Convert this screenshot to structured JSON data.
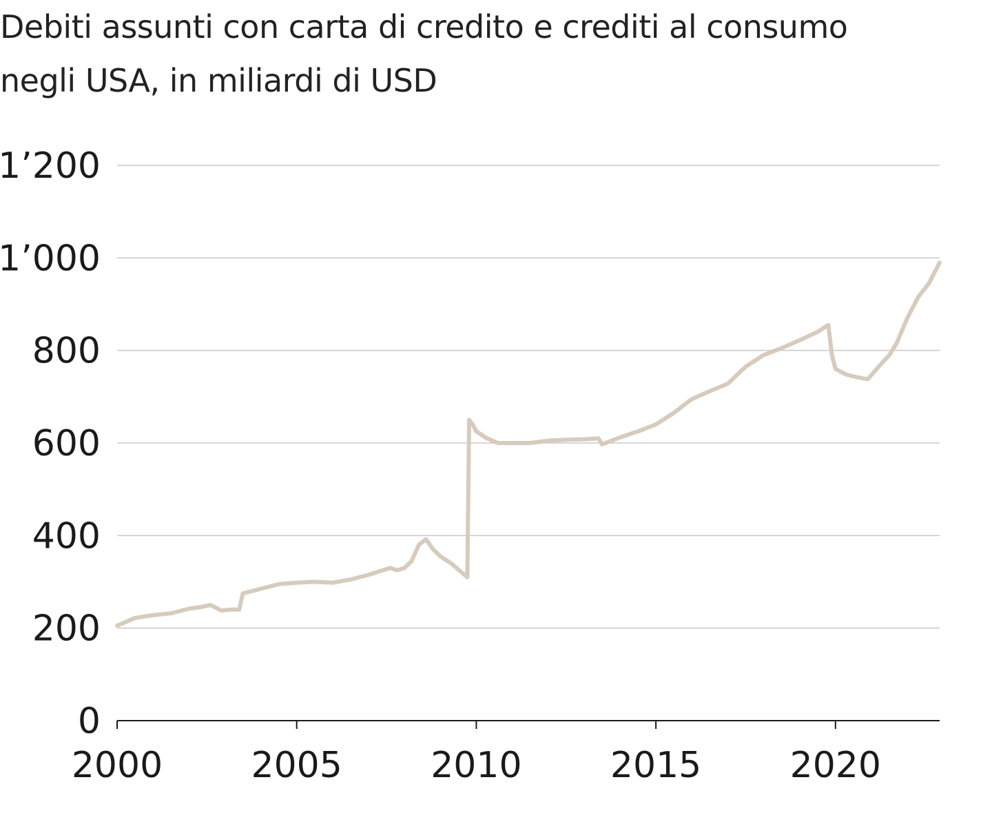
{
  "chart_data": {
    "type": "line",
    "title": "Debiti assunti con carta di credito e crediti al consumo negli USA, in miliardi di USD",
    "title_lines": [
      "Debiti assunti con carta di credito e crediti al consumo",
      "negli USA, in miliardi di USD"
    ],
    "xlabel": "",
    "ylabel": "",
    "xlim": [
      2000,
      2022.9
    ],
    "ylim": [
      0,
      1200
    ],
    "x_ticks": [
      2000,
      2005,
      2010,
      2015,
      2020
    ],
    "x_tick_labels": [
      "2000",
      "2005",
      "2010",
      "2015",
      "2020"
    ],
    "y_ticks": [
      0,
      200,
      400,
      600,
      800,
      1000,
      1200
    ],
    "y_tick_labels": [
      "0",
      "200",
      "400",
      "600",
      "800",
      "1’000",
      "1’200"
    ],
    "grid": true,
    "line_color": "#d6cbbd",
    "series": [
      {
        "x": [
          2000.0,
          2000.5,
          2001.0,
          2001.5,
          2002.0,
          2002.3,
          2002.6,
          2002.9,
          2003.2,
          2003.4,
          2003.5,
          2004.0,
          2004.5,
          2005.0,
          2005.5,
          2006.0,
          2006.5,
          2007.0,
          2007.4,
          2007.6,
          2007.8,
          2008.0,
          2008.2,
          2008.4,
          2008.6,
          2008.8,
          2009.0,
          2009.3,
          2009.6,
          2009.75,
          2009.8,
          2009.9,
          2010.0,
          2010.3,
          2010.6,
          2011.0,
          2011.5,
          2012.0,
          2012.5,
          2013.0,
          2013.4,
          2013.5,
          2014.0,
          2014.5,
          2015.0,
          2015.5,
          2016.0,
          2016.5,
          2017.0,
          2017.5,
          2018.0,
          2018.5,
          2019.0,
          2019.5,
          2019.8,
          2019.9,
          2020.0,
          2020.3,
          2020.6,
          2020.9,
          2021.2,
          2021.5,
          2021.7,
          2022.0,
          2022.3,
          2022.6,
          2022.9
        ],
        "y": [
          205,
          222,
          228,
          232,
          242,
          245,
          250,
          238,
          240,
          240,
          275,
          285,
          295,
          298,
          300,
          298,
          305,
          315,
          325,
          330,
          325,
          330,
          345,
          380,
          392,
          370,
          355,
          340,
          320,
          310,
          650,
          640,
          625,
          610,
          600,
          600,
          600,
          605,
          607,
          608,
          610,
          597,
          612,
          625,
          640,
          665,
          695,
          712,
          728,
          765,
          790,
          805,
          822,
          840,
          855,
          790,
          760,
          748,
          742,
          738,
          765,
          790,
          815,
          870,
          915,
          945,
          990
        ]
      }
    ]
  }
}
